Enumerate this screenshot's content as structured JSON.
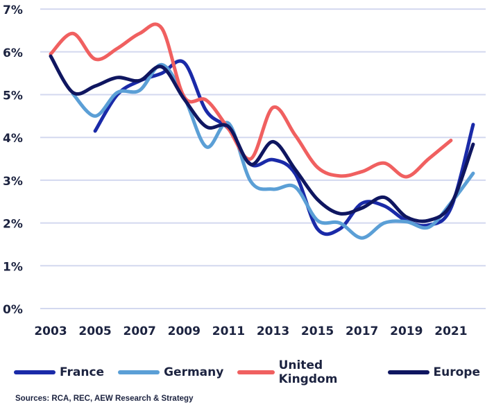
{
  "chart_data": {
    "type": "line",
    "title": "",
    "xlabel": "",
    "ylabel": "",
    "x": [
      2003,
      2004,
      2005,
      2006,
      2007,
      2008,
      2009,
      2010,
      2011,
      2012,
      2013,
      2014,
      2015,
      2016,
      2017,
      2018,
      2019,
      2020,
      2021,
      2022
    ],
    "x_tick_labels": [
      "2003",
      "2005",
      "2007",
      "2009",
      "2011",
      "2013",
      "2015",
      "2017",
      "2019",
      "2021"
    ],
    "y_tick_labels": [
      "0%",
      "1%",
      "2%",
      "3%",
      "4%",
      "5%",
      "6%",
      "7%"
    ],
    "ylim": [
      0,
      7
    ],
    "grid": "horizontal",
    "legend_position": "bottom",
    "series": [
      {
        "name": "France",
        "color": "#1a2aa8",
        "values": [
          null,
          null,
          4.15,
          5.0,
          5.32,
          5.5,
          5.75,
          4.62,
          4.2,
          3.37,
          3.48,
          3.15,
          1.86,
          1.86,
          2.46,
          2.4,
          2.05,
          1.95,
          2.35,
          4.3
        ]
      },
      {
        "name": "Germany",
        "color": "#5b9fd6",
        "values": [
          null,
          5.02,
          4.5,
          5.05,
          5.1,
          5.7,
          4.95,
          3.78,
          4.33,
          2.97,
          2.79,
          2.84,
          2.06,
          2.0,
          1.65,
          2.0,
          2.03,
          1.9,
          2.47,
          3.16
        ]
      },
      {
        "name": "United Kingdom",
        "color": "#f06060",
        "values": [
          5.95,
          6.43,
          5.83,
          6.08,
          6.43,
          6.55,
          4.95,
          4.87,
          4.2,
          3.5,
          4.7,
          4.05,
          3.3,
          3.1,
          3.2,
          3.4,
          3.08,
          3.5,
          3.93,
          null
        ]
      },
      {
        "name": "Europe",
        "color": "#0f1660",
        "values": [
          5.9,
          5.05,
          5.2,
          5.4,
          5.33,
          5.65,
          4.9,
          4.25,
          4.25,
          3.37,
          3.9,
          3.25,
          2.55,
          2.22,
          2.35,
          2.6,
          2.14,
          2.06,
          2.43,
          3.84
        ]
      }
    ]
  },
  "source": "Sources: RCA, REC, AEW Research & Strategy"
}
